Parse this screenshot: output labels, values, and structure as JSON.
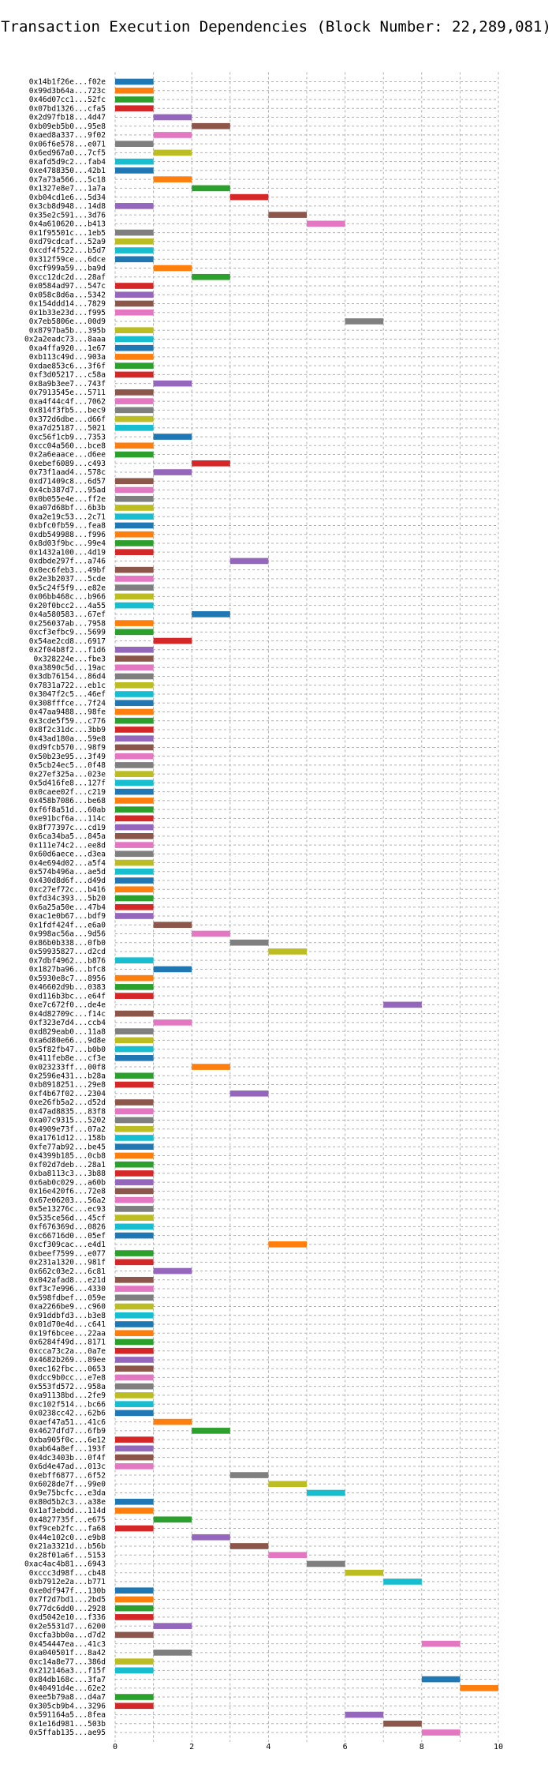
{
  "chart_data": {
    "type": "bar",
    "title": "Transaction Execution Dependencies (Block Number: 22,289,081)",
    "xlabel": "",
    "ylabel": "",
    "xlim": [
      0,
      10
    ],
    "xticks": [
      0,
      2,
      4,
      6,
      8,
      10
    ],
    "grid": true,
    "colors": [
      "#1f77b4",
      "#ff7f0e",
      "#2ca02c",
      "#d62728",
      "#9467bd",
      "#8c564b",
      "#e377c2",
      "#7f7f7f",
      "#bcbd22",
      "#17becf"
    ],
    "tx": [
      "0x14b1f26e...f02e",
      "0x99d3b64a...723c",
      "0x46d07cc1...52fc",
      "0x07bd1326...cfa5",
      "0x2d97fb18...4d47",
      "0xb09eb5b0...95e8",
      "0xaed8a337...9f02",
      "0x06f6e578...e071",
      "0x6ed967a0...7cf5",
      "0xafd5d9c2...fab4",
      "0xe4788350...42b1",
      "0x7a73a566...5c18",
      "0x1327e8e7...1a7a",
      "0xb04cd1e6...5d34",
      "0x3cb8d948...14d8",
      "0x35e2c591...3d76",
      "0x4a610620...b413",
      "0x1f95501c...1eb5",
      "0xd79cdcaf...52a9",
      "0xcdf4f522...b5d7",
      "0x312f59ce...6dce",
      "0xcf999a59...ba9d",
      "0xcc12dc2d...28af",
      "0x0584ad97...547c",
      "0x058c8d6a...5342",
      "0x154ddd14...7829",
      "0x1b33e23d...f995",
      "0x7eb5806e...00d9",
      "0x8797ba5b...395b",
      "0x2a2eadc73...8aaa",
      "0xa4ffa920...1e67",
      "0xb113c49d...903a",
      "0xdae853c6...3f6f",
      "0xf3d05217...c58a",
      "0x8a9b3ee7...743f",
      "0x7913545e...5711",
      "0xa4f44c4f...7062",
      "0x814f3fb5...bec9",
      "0x372d6dbe...d66f",
      "0xa7d25187...5021",
      "0xc56f1cb9...7353",
      "0xcc04a560...bce8",
      "0x2a6eaace...d6ee",
      "0xebef6089...c493",
      "0x73f1aad4...578c",
      "0xd71409c8...6d57",
      "0x4cb387d7...95ad",
      "0x0b055e4e...ff2e",
      "0xa07d68bf...6b3b",
      "0xa2e19c53...2c71",
      "0xbfc0fb59...fea8",
      "0xdb549988...f996",
      "0x8d03f9bc...99e4",
      "0x1432a100...4d19",
      "0xdbde297f...a746",
      "0x0ec6feb3...49bf",
      "0x2e3b2037...5cde",
      "0x5c24f5f9...e82e",
      "0x06bb468c...b966",
      "0x20f0bcc2...4a55",
      "0x4a580583...67ef",
      "0x256037ab...7958",
      "0xcf3efbc9...5699",
      "0x54ae2cd8...6917",
      "0x2f04b8f2...f1d6",
      "0x328224e...fbe3",
      "0xa3890c5d...19ac",
      "0x3db76154...86d4",
      "0x7831a722...eb1c",
      "0x3047f2c5...46ef",
      "0x308fffce...7f24",
      "0x47aa9488...98fe",
      "0x3cde5f59...c776",
      "0x8f2c31dc...3bb9",
      "0x43ad180a...59e8",
      "0xd9fcb570...98f9",
      "0x50b23e95...3f49",
      "0x5cb24ec5...0f48",
      "0x27ef325a...023e",
      "0x5d416fe8...127f",
      "0x0caee02f...c219",
      "0x458b7086...be68",
      "0xf6f8a51d...60ab",
      "0xe91bcf6a...114c",
      "0x8f77397c...cd19",
      "0x6ca34ba5...845a",
      "0x111e74c2...ee8d",
      "0x60d6aece...d3ea",
      "0x4e694d02...a5f4",
      "0x574b496a...ae5d",
      "0x430d8d6f...d49d",
      "0xc27ef72c...b416",
      "0xfd34c393...5b20",
      "0x6a25a50e...47b4",
      "0xac1e0b67...bdf9",
      "0x1fdf424f...e6a0",
      "0x998ac56a...9d56",
      "0x86b0b338...0fb0",
      "0x59935827...d2cd",
      "0x7dbf4962...b876",
      "0x1827ba96...bfc8",
      "0x5930e8c7...8956",
      "0x46602d9b...0383",
      "0xd116b3bc...e64f",
      "0xe7c672f0...de4e",
      "0x4d82709c...f14c",
      "0xf323e7d4...ccb4",
      "0xd829eab0...11a8",
      "0xa6d80e66...9d8e",
      "0x5f82fb47...b0b0",
      "0x411feb8e...cf3e",
      "0x023233ff...00f8",
      "0x2596e431...b28a",
      "0xb8918251...29e8",
      "0xf4b67f02...2304",
      "0xe26fb5a2...d52d",
      "0x47ad8835...83f8",
      "0xa07c9315...5202",
      "0x4909e73f...07a2",
      "0xa1761d12...158b",
      "0xfe77ab92...be45",
      "0x4399b185...0cb8",
      "0xf02d7deb...28a1",
      "0xba8113c3...3b88",
      "0x6ab0c029...a60b",
      "0x16e420f6...72e8",
      "0x67e06203...56a2",
      "0x5e13276c...ec93",
      "0x535ce56d...45cf",
      "0xf676369d...0826",
      "0xc66716d0...05ef",
      "0xcf309cac...e4d1",
      "0xbeef7599...e077",
      "0x231a1320...981f",
      "0x662c03e2...6c81",
      "0x042afad8...e21d",
      "0xf3c7e996...4330",
      "0x598fdbef...059e",
      "0xa2266be9...c960",
      "0x91ddbfd3...b3e8",
      "0x01d70e4d...c641",
      "0x19f6bcee...22aa",
      "0x6284f49d...8171",
      "0xcca73c2a...0a7e",
      "0x4682b269...89ee",
      "0xec162fbc...0653",
      "0xdcc9b0cc...e7e8",
      "0x553fd572...958a",
      "0xa91138bd...2fe9",
      "0xc102f514...bc66",
      "0x0238cc42...62b6",
      "0xaef47a51...41c6",
      "0x4627dfd7...6fb9",
      "0xba905f0c...6e12",
      "0xab64a8ef...193f",
      "0x4dc3403b...0f4f",
      "0x6d4e47ad...013c",
      "0xebff6877...6f52",
      "0x6028de7f...99e0",
      "0x9e75bcfc...e3da",
      "0x80d5b2c3...a38e",
      "0x1af3ebdd...114d",
      "0x4827735f...e675",
      "0xf9ceb2fc...fa68",
      "0x44e102c0...e9b8",
      "0x21a3321d...b56b",
      "0x28f01a6f...5153",
      "0xac4ac4b81...6943",
      "0xccc3d98f...cb48",
      "0xb7912e2a...b771",
      "0xe0df947f...130b",
      "0x7f2d7bd1...2bd5",
      "0x77dc6dd0...2928",
      "0xd5042e10...f336",
      "0x2e5531d7...6200",
      "0xcfa3bb0a...d7d2",
      "0x454447ea...41c3",
      "0xa040501f...8a42",
      "0xc14a8e77...386d",
      "0x212146a3...f15f",
      "0x84db168c...3fa7",
      "0x40491d4e...62e2",
      "0xee5b79a8...d4a7",
      "0x305cb9b4...3296",
      "0x591164a5...8fea",
      "0x1e16d981...503b",
      "0x5ffab135...ae95"
    ],
    "start": [
      0,
      0,
      0,
      0,
      1,
      2,
      1,
      0,
      1,
      0,
      0,
      1,
      2,
      3,
      0,
      4,
      5,
      0,
      0,
      0,
      0,
      1,
      2,
      0,
      0,
      0,
      0,
      6,
      0,
      0,
      0,
      0,
      0,
      0,
      1,
      0,
      0,
      0,
      0,
      0,
      1,
      0,
      0,
      2,
      1,
      0,
      0,
      0,
      0,
      0,
      0,
      0,
      0,
      0,
      3,
      0,
      0,
      0,
      0,
      0,
      2,
      0,
      0,
      1,
      0,
      0,
      0,
      0,
      0,
      0,
      0,
      0,
      0,
      0,
      0,
      0,
      0,
      0,
      0,
      0,
      0,
      0,
      0,
      0,
      0,
      0,
      0,
      0,
      0,
      0,
      0,
      0,
      0,
      0,
      0,
      1,
      2,
      3,
      4,
      0,
      1,
      0,
      0,
      0,
      7,
      0,
      1,
      0,
      0,
      0,
      0,
      2,
      0,
      0,
      3,
      0,
      0,
      0,
      0,
      0,
      0,
      0,
      0,
      0,
      0,
      0,
      0,
      0,
      0,
      0,
      0,
      4,
      0,
      0,
      1,
      0,
      0,
      0,
      0,
      0,
      0,
      0,
      0,
      0,
      0,
      0,
      0,
      0,
      0,
      0,
      0,
      1,
      2,
      0,
      0,
      0,
      0,
      3,
      4,
      5,
      0,
      0,
      1,
      0,
      2,
      3,
      4,
      5,
      6,
      7,
      0,
      0,
      0,
      0,
      1,
      0,
      8,
      1,
      0,
      0,
      8,
      9,
      0,
      0,
      6,
      7,
      8
    ],
    "color_index": [
      0,
      1,
      2,
      3,
      4,
      5,
      6,
      7,
      8,
      9,
      0,
      1,
      2,
      3,
      4,
      5,
      6,
      7,
      8,
      9,
      0,
      1,
      2,
      3,
      4,
      5,
      6,
      7,
      8,
      9,
      0,
      1,
      2,
      3,
      4,
      5,
      6,
      7,
      8,
      9,
      0,
      1,
      2,
      3,
      4,
      5,
      6,
      7,
      8,
      9,
      0,
      1,
      2,
      3,
      4,
      5,
      6,
      7,
      8,
      9,
      0,
      1,
      2,
      3,
      4,
      5,
      6,
      7,
      8,
      9,
      0,
      1,
      2,
      3,
      4,
      5,
      6,
      7,
      8,
      9,
      0,
      1,
      2,
      3,
      4,
      5,
      6,
      7,
      8,
      9,
      0,
      1,
      2,
      3,
      4,
      5,
      6,
      7,
      8,
      9,
      0,
      1,
      2,
      3,
      4,
      5,
      6,
      7,
      8,
      9,
      0,
      1,
      2,
      3,
      4,
      5,
      6,
      7,
      8,
      9,
      0,
      1,
      2,
      3,
      4,
      5,
      6,
      7,
      8,
      9,
      0,
      1,
      2,
      3,
      4,
      5,
      6,
      7,
      8,
      9,
      0,
      1,
      2,
      3,
      4,
      5,
      6,
      7,
      8,
      9,
      0,
      1,
      2,
      3,
      4,
      5,
      6,
      7,
      8,
      9,
      0,
      1,
      2,
      3,
      4,
      5,
      6,
      7,
      8,
      9,
      0,
      1,
      2,
      3,
      4,
      5,
      6,
      7,
      8,
      9,
      0,
      1,
      2,
      3,
      4,
      5,
      6
    ],
    "duration": 1
  }
}
